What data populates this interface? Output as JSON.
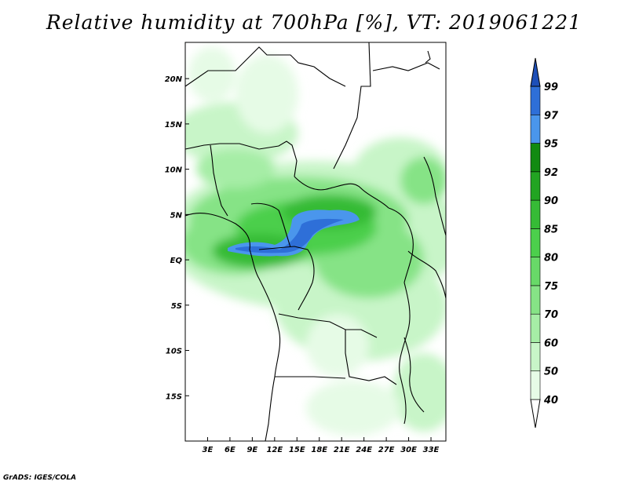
{
  "title": "Relative humidity at 700hPa [%], VT: 2019061221",
  "footer": "GrADS: IGES/COLA",
  "map": {
    "lon_range": [
      0,
      35
    ],
    "lat_range": [
      -20,
      24
    ],
    "lon_ticks": [
      "3E",
      "6E",
      "9E",
      "12E",
      "15E",
      "18E",
      "21E",
      "24E",
      "27E",
      "30E",
      "33E"
    ],
    "lon_values": [
      3,
      6,
      9,
      12,
      15,
      18,
      21,
      24,
      27,
      30,
      33
    ],
    "lat_ticks": [
      "20N",
      "15N",
      "10N",
      "5N",
      "EQ",
      "5S",
      "10S",
      "15S"
    ],
    "lat_values": [
      20,
      15,
      10,
      5,
      0,
      -5,
      -10,
      -15
    ]
  },
  "colorbar": {
    "levels": [
      "40",
      "50",
      "60",
      "70",
      "75",
      "80",
      "85",
      "90",
      "92",
      "95",
      "97",
      "99"
    ],
    "colors": [
      "#ffffff",
      "#e6fbe6",
      "#c8f5c8",
      "#a6eda6",
      "#86e386",
      "#68d968",
      "#4ccf4c",
      "#36bb36",
      "#22a422",
      "#118a11",
      "#4a96ec",
      "#2e6fd8",
      "#1d4fb8"
    ]
  }
}
